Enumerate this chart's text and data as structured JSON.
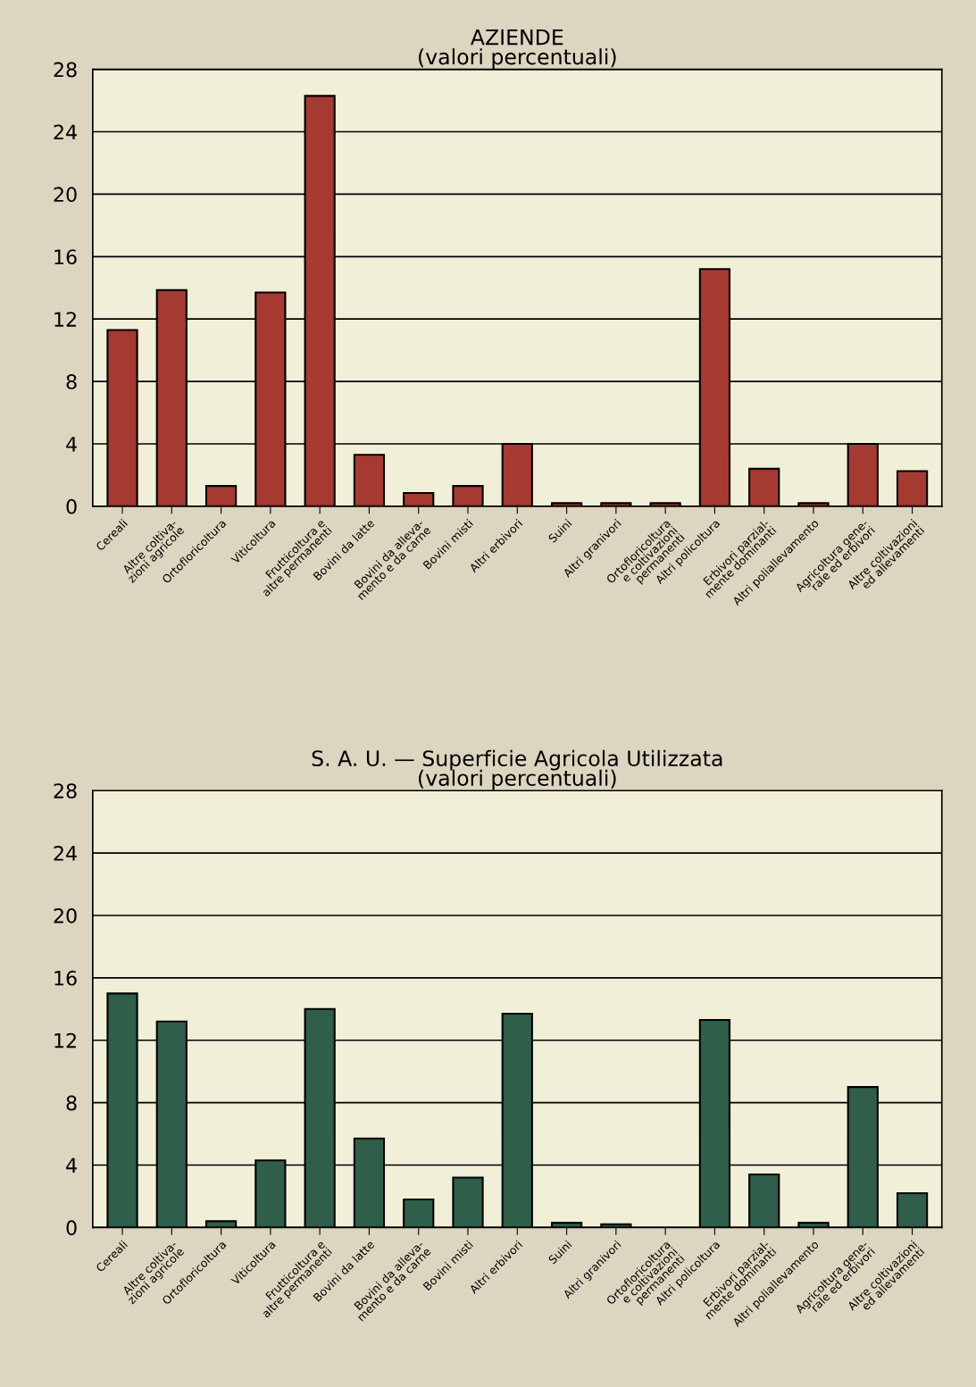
{
  "chart_data": [
    {
      "type": "bar",
      "title": "AZIENDE\n(valori percentuali)",
      "categories": [
        "Cereali",
        "Altre coltiva-\nzioni agricole",
        "Ortofloricoltura",
        "Viticoltura",
        "Frutticoltura e\naltre permanenti",
        "Bovini da latte",
        "Bovini da alleva-\nmento e da carne",
        "Bovini misti",
        "Altri erbivori",
        "Suini",
        "Altri granivori",
        "Ortofloricoltura\ne coltivazioni\npermanenti",
        "Altri policoltura",
        "Erbivori parzial-\nmente dominanti",
        "Altri poliallevamento",
        "Agricoltura gene-\nrale ed erbivori",
        "Altre coltivazioni\ned allevamenti"
      ],
      "series": [
        {
          "color": "#a53a32",
          "values": [
            11.3,
            13.85,
            1.3,
            13.7,
            26.3,
            3.3,
            0.85,
            1.3,
            4.0,
            0.2,
            0.2,
            0.2,
            15.2,
            2.4,
            0.2,
            4.0,
            2.25
          ]
        }
      ],
      "ylim": [
        0,
        28
      ],
      "yticks": [
        0,
        4,
        8,
        12,
        16,
        20,
        24,
        28
      ],
      "grid": "y",
      "legend": false
    },
    {
      "type": "bar",
      "title": "S. A. U. — Superficie Agricola Utilizzata\n(valori percentuali)",
      "categories": [
        "Cereali",
        "Altre coltiva-\nzioni agricole",
        "Ortofloricoltura",
        "Viticoltura",
        "Frutticoltura e\naltre permanenti",
        "Bovini da latte",
        "Bovini da alleva-\nmento e da carne",
        "Bovini misti",
        "Altri erbivori",
        "Suini",
        "Altri granivori",
        "Ortofloricoltura\ne coltivazioni\npermanenti",
        "Altri policoltura",
        "Erbivori parzial-\nmente dominanti",
        "Altri poliallevamento",
        "Agricoltura gene-\nrale ed erbivori",
        "Altre coltivazioni\ned allevamenti"
      ],
      "series": [
        {
          "color": "#2f5e4a",
          "values": [
            15.0,
            13.2,
            0.4,
            4.3,
            14.0,
            5.7,
            1.8,
            3.2,
            13.7,
            0.3,
            0.2,
            null,
            13.3,
            3.4,
            0.3,
            9.0,
            2.2
          ]
        }
      ],
      "ylim": [
        0,
        28
      ],
      "yticks": [
        0,
        4,
        8,
        12,
        16,
        20,
        24,
        28
      ],
      "grid": "y",
      "legend": false
    }
  ]
}
